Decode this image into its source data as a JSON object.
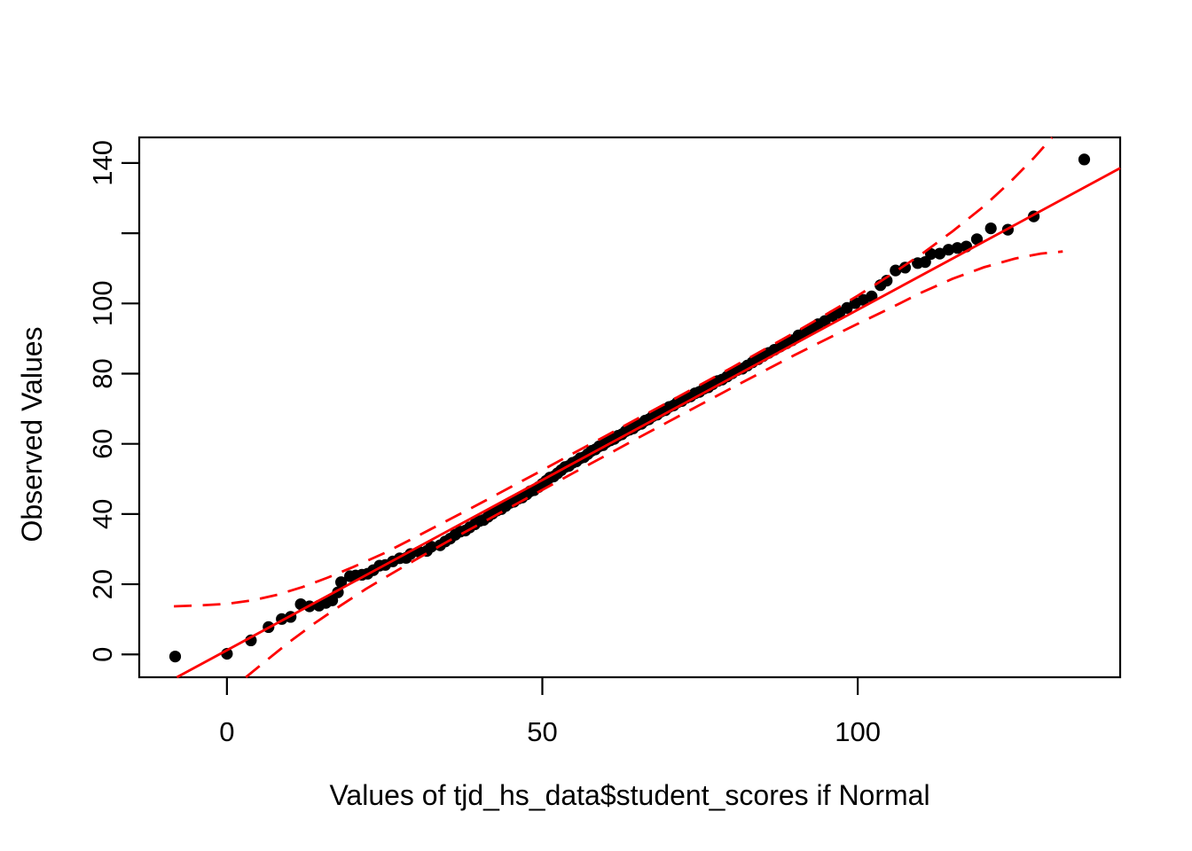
{
  "figure": {
    "kind": "r-statistical-plot",
    "background": "#ffffff",
    "point_color": "#000000",
    "line_color": "#fe0000",
    "envelope_color": "#fe0000"
  },
  "chart_data": {
    "type": "scatter",
    "title": "",
    "xlabel": "Values of tjd_hs_data$student_scores if Normal",
    "ylabel": "Observed Values",
    "xlim": [
      -13.9,
      141.6
    ],
    "ylim": [
      -6.5,
      147.3
    ],
    "grid": false,
    "legend": "none",
    "x_ticks": [
      0,
      50,
      100
    ],
    "x_tick_labels": [
      "0",
      "50",
      "100"
    ],
    "y_ticks": [
      0,
      20,
      40,
      60,
      80,
      100,
      120,
      140
    ],
    "y_tick_labels": [
      "0",
      "20",
      "40",
      "60",
      "80",
      "100",
      "",
      "140"
    ],
    "series": [
      {
        "name": "observed-quantiles",
        "type": "scatter",
        "color": "#000000",
        "marker_radius_px": 6.6,
        "points": [
          [
            -8.2,
            -0.6
          ],
          [
            0,
            0.2
          ],
          [
            3.8,
            4
          ],
          [
            6.6,
            7.8
          ],
          [
            8.7,
            10.1
          ],
          [
            10.1,
            10.7
          ],
          [
            11.7,
            14.3
          ],
          [
            13.1,
            13.7
          ],
          [
            14.6,
            13.9
          ],
          [
            15.7,
            14.7
          ],
          [
            16.7,
            15.4
          ],
          [
            17.6,
            17.7
          ],
          [
            18.1,
            20.6
          ],
          [
            19.5,
            22.3
          ],
          [
            20.4,
            22.5
          ],
          [
            21.4,
            22.7
          ],
          [
            22.3,
            23
          ],
          [
            23.2,
            24
          ],
          [
            24.2,
            25.3
          ],
          [
            25.1,
            25.5
          ],
          [
            26.3,
            26.5
          ],
          [
            27.4,
            27.4
          ],
          [
            28.4,
            27.5
          ],
          [
            29.1,
            28.6
          ],
          [
            30.5,
            29.2
          ],
          [
            31.7,
            29.5
          ],
          [
            32.4,
            30.7
          ],
          [
            33.8,
            31.1
          ],
          [
            34.6,
            32.2
          ],
          [
            35.4,
            33
          ],
          [
            36.2,
            34.1
          ],
          [
            37,
            35
          ],
          [
            37.8,
            35.3
          ],
          [
            38.5,
            36.2
          ],
          [
            39.3,
            37.1
          ],
          [
            40,
            38
          ],
          [
            40.7,
            38.3
          ],
          [
            41.4,
            39.2
          ],
          [
            42.1,
            40.1
          ],
          [
            42.8,
            41
          ],
          [
            43.5,
            41.4
          ],
          [
            44.2,
            42.3
          ],
          [
            44.9,
            43.2
          ],
          [
            45.5,
            43.5
          ],
          [
            46.2,
            44.4
          ],
          [
            46.8,
            44.7
          ],
          [
            47.5,
            45.6
          ],
          [
            48.1,
            46.5
          ],
          [
            48.7,
            46.8
          ],
          [
            49.4,
            47.7
          ],
          [
            50,
            48.6
          ],
          [
            50.6,
            49.5
          ],
          [
            51.2,
            50.4
          ],
          [
            51.8,
            50.7
          ],
          [
            52.4,
            51.6
          ],
          [
            53,
            52.5
          ],
          [
            53.6,
            53.4
          ],
          [
            54.2,
            53.7
          ],
          [
            54.8,
            54.6
          ],
          [
            55.4,
            55
          ],
          [
            56,
            55.9
          ],
          [
            56.6,
            56.2
          ],
          [
            57.2,
            57.1
          ],
          [
            57.8,
            58
          ],
          [
            58.4,
            58.4
          ],
          [
            59,
            59.3
          ],
          [
            59.6,
            59.6
          ],
          [
            60.2,
            60.5
          ],
          [
            60.8,
            61
          ],
          [
            61.4,
            61.4
          ],
          [
            62,
            62.3
          ],
          [
            62.6,
            62.7
          ],
          [
            63.2,
            63.6
          ],
          [
            63.8,
            64
          ],
          [
            64.4,
            64.4
          ],
          [
            65,
            65.3
          ],
          [
            65.7,
            65.7
          ],
          [
            66.3,
            66.6
          ],
          [
            66.9,
            67
          ],
          [
            67.5,
            67.9
          ],
          [
            68.2,
            68.3
          ],
          [
            68.8,
            69.2
          ],
          [
            69.5,
            69.6
          ],
          [
            70.1,
            70.5
          ],
          [
            70.8,
            70.9
          ],
          [
            71.4,
            71.8
          ],
          [
            72.1,
            72.2
          ],
          [
            72.8,
            73.1
          ],
          [
            73.5,
            73.5
          ],
          [
            74.2,
            74.4
          ],
          [
            74.9,
            74.8
          ],
          [
            75.6,
            75.7
          ],
          [
            76.3,
            76.1
          ],
          [
            77,
            77
          ],
          [
            77.8,
            77.9
          ],
          [
            78.5,
            78.3
          ],
          [
            79.3,
            79.2
          ],
          [
            80.1,
            80.1
          ],
          [
            80.9,
            81
          ],
          [
            81.7,
            81.4
          ],
          [
            82.5,
            82.3
          ],
          [
            83.3,
            83.2
          ],
          [
            84.2,
            84.1
          ],
          [
            85,
            85
          ],
          [
            85.9,
            85.9
          ],
          [
            86.8,
            86.8
          ],
          [
            87.7,
            87.7
          ],
          [
            88.7,
            88.6
          ],
          [
            89.6,
            89.5
          ],
          [
            90.6,
            90.9
          ],
          [
            91.6,
            91.8
          ],
          [
            92.7,
            92.7
          ],
          [
            93.7,
            94.1
          ],
          [
            94.8,
            95
          ],
          [
            96,
            96.4
          ],
          [
            97.1,
            97.3
          ],
          [
            98.3,
            98.7
          ],
          [
            99.6,
            100.1
          ],
          [
            100.9,
            101
          ],
          [
            102.2,
            102
          ],
          [
            103.6,
            105.2
          ],
          [
            104.6,
            106.5
          ],
          [
            106,
            109.4
          ],
          [
            107.5,
            110.2
          ],
          [
            109.5,
            111.5
          ],
          [
            110.7,
            111.8
          ],
          [
            111.6,
            114.1
          ],
          [
            113,
            114.2
          ],
          [
            114.4,
            115.3
          ],
          [
            115.8,
            115.8
          ],
          [
            117.2,
            116.2
          ],
          [
            118.9,
            118.3
          ],
          [
            121.1,
            121.4
          ],
          [
            123.8,
            121
          ],
          [
            127.9,
            124.8
          ],
          [
            135.9,
            141
          ]
        ]
      },
      {
        "name": "qq-reference-line",
        "type": "line",
        "style": "solid",
        "color": "#fe0000",
        "slope": 0.97,
        "intercept": 1.2,
        "x_range": [
          -7.94,
          141.6
        ]
      },
      {
        "name": "confidence-envelope-upper",
        "type": "line",
        "style": "dashed",
        "color": "#fe0000",
        "points": [
          [
            -8.4,
            13.7
          ],
          [
            -4,
            14
          ],
          [
            0,
            14.4
          ],
          [
            4,
            15.4
          ],
          [
            8,
            17
          ],
          [
            12,
            19.2
          ],
          [
            16,
            21.9
          ],
          [
            20,
            24.9
          ],
          [
            25,
            28.9
          ],
          [
            30,
            33.5
          ],
          [
            35,
            38.2
          ],
          [
            40,
            42.9
          ],
          [
            45,
            47.7
          ],
          [
            50,
            52.5
          ],
          [
            55,
            57.4
          ],
          [
            60,
            62.2
          ],
          [
            65,
            67.1
          ],
          [
            70,
            71.9
          ],
          [
            75,
            76.8
          ],
          [
            80,
            81.7
          ],
          [
            85,
            86.7
          ],
          [
            90,
            91.7
          ],
          [
            95,
            96.9
          ],
          [
            100,
            102.2
          ],
          [
            105,
            107.9
          ],
          [
            110,
            113.9
          ],
          [
            115,
            120.5
          ],
          [
            120,
            127.7
          ],
          [
            124,
            134.3
          ],
          [
            128,
            141.6
          ],
          [
            130.8,
            147.3
          ]
        ]
      },
      {
        "name": "confidence-envelope-lower",
        "type": "line",
        "style": "dashed",
        "color": "#fe0000",
        "points": [
          [
            3,
            -6.5
          ],
          [
            6,
            -2.1
          ],
          [
            10,
            3.7
          ],
          [
            14,
            9
          ],
          [
            18,
            13.9
          ],
          [
            22,
            18.6
          ],
          [
            26,
            22.9
          ],
          [
            30,
            27.1
          ],
          [
            35,
            32.2
          ],
          [
            40,
            37.1
          ],
          [
            45,
            42
          ],
          [
            50,
            46.9
          ],
          [
            55,
            51.8
          ],
          [
            60,
            56.6
          ],
          [
            65,
            61.5
          ],
          [
            70,
            66.3
          ],
          [
            75,
            71.1
          ],
          [
            80,
            75.9
          ],
          [
            85,
            80.6
          ],
          [
            90,
            85.3
          ],
          [
            95,
            89.8
          ],
          [
            100,
            94.2
          ],
          [
            105,
            98.5
          ],
          [
            110,
            103
          ],
          [
            115,
            107
          ],
          [
            120,
            110.3
          ],
          [
            125,
            112.8
          ],
          [
            129,
            114.2
          ],
          [
            132.5,
            114.8
          ]
        ]
      }
    ]
  }
}
